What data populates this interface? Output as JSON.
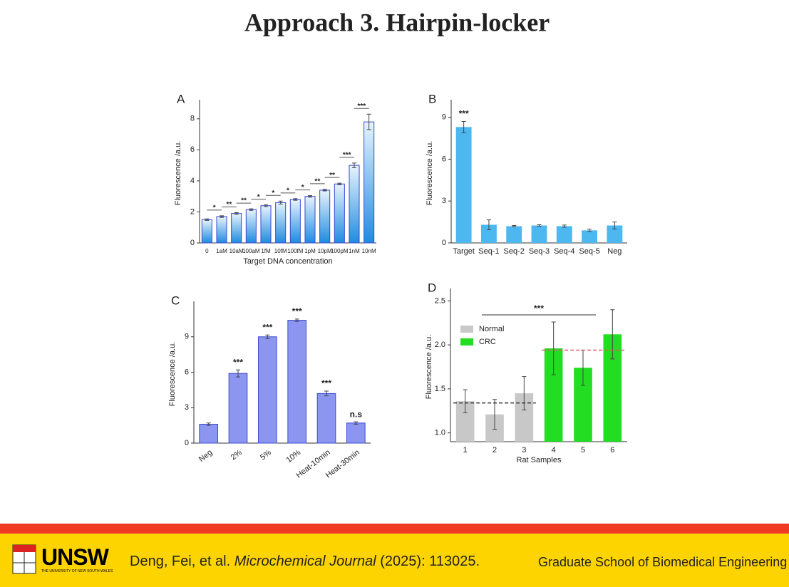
{
  "title": "Approach 3. Hairpin-locker",
  "footer": {
    "logo": "UNSW",
    "logo_subtitle": "THE UNIVERSITY OF NEW SOUTH WALES",
    "citation": [
      "Deng, Fei, et al. ",
      "Microchemical Journal",
      " (2025): 113025."
    ],
    "school": "Graduate School of Biomedical Engineering"
  },
  "chart_data": [
    {
      "type": "bar",
      "panel": "A",
      "x_label": "Target DNA concentration",
      "y_label": "Fluorescence /a.u.",
      "categories": [
        "0",
        "1aM",
        "10aM",
        "100aM",
        "1fM",
        "10fM",
        "100fM",
        "1pM",
        "10pM",
        "100pM",
        "1nM",
        "10nM"
      ],
      "values": [
        1.5,
        1.7,
        1.9,
        2.15,
        2.4,
        2.6,
        2.8,
        3.0,
        3.4,
        3.8,
        5.0,
        7.8
      ],
      "errors": [
        0.05,
        0.05,
        0.05,
        0.05,
        0.05,
        0.1,
        0.05,
        0.05,
        0.05,
        0.05,
        0.15,
        0.5
      ],
      "significance": [
        "*",
        "**",
        "**",
        "*",
        "*",
        "*",
        "*",
        "**",
        "**",
        "***",
        "***"
      ],
      "significance_color": "#e8202a",
      "color": "#1f8be0",
      "ylim": [
        0,
        9
      ],
      "yticks": [
        0,
        2,
        4,
        6,
        8
      ],
      "grid": false
    },
    {
      "type": "bar",
      "panel": "B",
      "y_label": "Fluorescence /a.u.",
      "categories": [
        "Target",
        "Seq-1",
        "Seq-2",
        "Seq-3",
        "Seq-4",
        "Seq-5",
        "Neg"
      ],
      "values": [
        8.3,
        1.3,
        1.2,
        1.25,
        1.2,
        0.9,
        1.25
      ],
      "errors": [
        0.4,
        0.35,
        0.05,
        0.05,
        0.08,
        0.08,
        0.25
      ],
      "bar_labels": [
        "***",
        null,
        null,
        null,
        null,
        null,
        null
      ],
      "color": "#4db8f0",
      "ylim": [
        0,
        10
      ],
      "yticks": [
        0,
        3,
        6,
        9
      ],
      "grid": false
    },
    {
      "type": "bar",
      "panel": "C",
      "y_label": "Fluorescence /a.u.",
      "categories": [
        "Neg",
        "2%",
        "5%",
        "10%",
        "Heat-10min",
        "Heat-30min"
      ],
      "values": [
        1.6,
        5.9,
        9.0,
        10.4,
        4.2,
        1.7
      ],
      "errors": [
        0.1,
        0.3,
        0.15,
        0.1,
        0.2,
        0.1
      ],
      "bar_labels": [
        null,
        "***",
        "***",
        "***",
        "***",
        "n.s"
      ],
      "color": "#8c96f0",
      "ylim": [
        0,
        11.7
      ],
      "yticks": [
        0,
        3,
        6,
        9
      ],
      "grid": false
    },
    {
      "type": "bar",
      "panel": "D",
      "x_label": "Rat Samples",
      "y_label": "Fluorescence /a.u.",
      "categories": [
        "1",
        "2",
        "3",
        "4",
        "5",
        "6"
      ],
      "series": [
        {
          "name": "Normal",
          "color": "#c8c8c8",
          "values": [
            1.36,
            1.21,
            1.45,
            null,
            null,
            null
          ],
          "errors": [
            0.13,
            0.17,
            0.19,
            null,
            null,
            null
          ]
        },
        {
          "name": "CRC",
          "color": "#22dd22",
          "values": [
            null,
            null,
            null,
            1.96,
            1.74,
            2.12
          ],
          "errors": [
            null,
            null,
            null,
            0.3,
            0.2,
            0.28
          ]
        }
      ],
      "reference_lines": [
        {
          "value": 1.34,
          "color": "#333333"
        },
        {
          "value": 1.94,
          "color": "#e05a6a"
        }
      ],
      "annotation": "***",
      "ylim": [
        0.9,
        2.6
      ],
      "yticks": [
        {
          "value": 1,
          "label": "1.0"
        },
        1.5,
        {
          "value": 2,
          "label": "2.0"
        },
        2.5
      ],
      "grid": false
    }
  ]
}
